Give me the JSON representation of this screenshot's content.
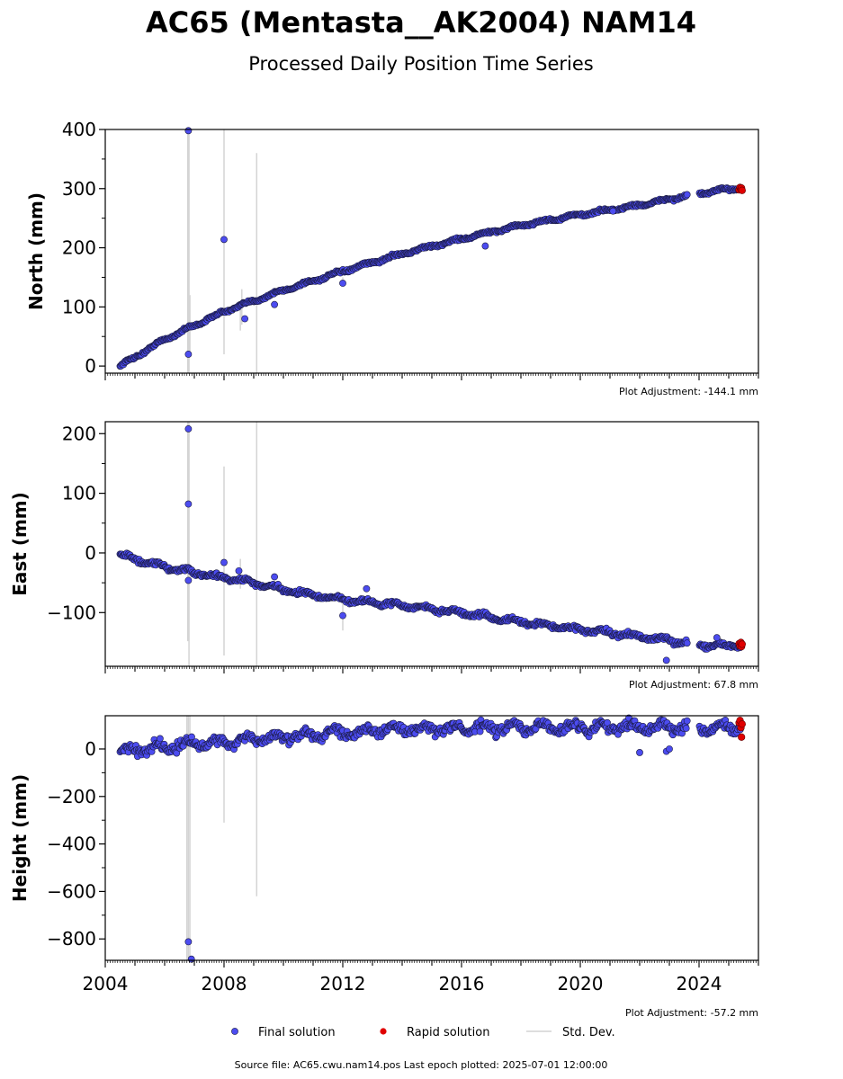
{
  "title": "AC65 (Mentasta__AK2004) NAM14",
  "subtitle": "Processed Daily Position Time Series",
  "source_text": "Source file: AC65.cwu.nam14.pos  Last epoch plotted: 2025-07-01 12:00:00",
  "legend": {
    "final": "Final solution",
    "rapid": "Rapid solution",
    "std": "Std. Dev."
  },
  "colors": {
    "final_fill": "#4c4cf0",
    "final_edge": "#1a1a40",
    "rapid": "#e00000",
    "std": "#d4d4d4"
  },
  "chart_data": [
    {
      "type": "scatter",
      "ylabel": "North (mm)",
      "adjustment": "Plot Adjustment: -144.1 mm",
      "xlim": [
        2004.0,
        2026.0
      ],
      "ylim": [
        -12,
        400
      ],
      "yticks": [
        {
          "value": 0,
          "label": "0"
        },
        {
          "value": 100,
          "label": "100"
        },
        {
          "value": 200,
          "label": "200"
        },
        {
          "value": 300,
          "label": "300"
        },
        {
          "value": 400,
          "label": "400"
        }
      ],
      "final_trend": [
        [
          2004.5,
          0
        ],
        [
          2006,
          45
        ],
        [
          2008,
          92
        ],
        [
          2010,
          128
        ],
        [
          2012,
          160
        ],
        [
          2014,
          190
        ],
        [
          2016,
          215
        ],
        [
          2018,
          238
        ],
        [
          2020,
          256
        ],
        [
          2022,
          272
        ],
        [
          2023.5,
          287
        ],
        [
          2024.3,
          294
        ],
        [
          2025.4,
          302
        ]
      ],
      "final_noise": 3,
      "final_gaps": [
        [
          2023.6,
          2024.0
        ]
      ],
      "final_outliers": [
        [
          2006.8,
          398
        ],
        [
          2006.8,
          20
        ],
        [
          2008.0,
          214
        ],
        [
          2008.7,
          80
        ],
        [
          2009.7,
          104
        ],
        [
          2012.0,
          140
        ],
        [
          2016.8,
          203
        ],
        [
          2021.1,
          262
        ]
      ],
      "rapid": [
        [
          2025.35,
          298
        ],
        [
          2025.38,
          302
        ],
        [
          2025.41,
          299
        ],
        [
          2025.43,
          301
        ],
        [
          2025.45,
          297
        ]
      ],
      "std_bars": [
        [
          2006.78,
          -12,
          400
        ],
        [
          2006.82,
          -12,
          400
        ],
        [
          2006.85,
          20,
          120
        ],
        [
          2008.0,
          20,
          400
        ],
        [
          2008.55,
          60,
          110
        ],
        [
          2008.6,
          70,
          130
        ],
        [
          2009.1,
          -12,
          360
        ],
        [
          2012.0,
          135,
          150
        ]
      ]
    },
    {
      "type": "scatter",
      "ylabel": "East (mm)",
      "adjustment": "Plot Adjustment: 67.8 mm",
      "xlim": [
        2004.0,
        2026.0
      ],
      "ylim": [
        -190,
        220
      ],
      "yticks": [
        {
          "value": -100,
          "label": "−100"
        },
        {
          "value": 0,
          "label": "0"
        },
        {
          "value": 100,
          "label": "100"
        },
        {
          "value": 200,
          "label": "200"
        }
      ],
      "final_trend": [
        [
          2004.5,
          -3
        ],
        [
          2005.5,
          -18
        ],
        [
          2006.5,
          -28
        ],
        [
          2007.5,
          -38
        ],
        [
          2008.5,
          -45
        ],
        [
          2010,
          -62
        ],
        [
          2012,
          -78
        ],
        [
          2014,
          -88
        ],
        [
          2016,
          -100
        ],
        [
          2018,
          -116
        ],
        [
          2020,
          -128
        ],
        [
          2022,
          -140
        ],
        [
          2023.5,
          -150
        ],
        [
          2024.4,
          -155
        ],
        [
          2025.4,
          -155
        ]
      ],
      "final_noise": 5,
      "final_gaps": [
        [
          2023.6,
          2024.0
        ]
      ],
      "final_outliers": [
        [
          2006.8,
          208
        ],
        [
          2006.8,
          82
        ],
        [
          2006.8,
          -46
        ],
        [
          2008.0,
          -16
        ],
        [
          2008.5,
          -30
        ],
        [
          2009.7,
          -40
        ],
        [
          2012.0,
          -105
        ],
        [
          2012.8,
          -60
        ],
        [
          2022.9,
          -180
        ],
        [
          2024.6,
          -142
        ]
      ],
      "rapid": [
        [
          2025.35,
          -152
        ],
        [
          2025.38,
          -156
        ],
        [
          2025.41,
          -150
        ],
        [
          2025.43,
          -157
        ],
        [
          2025.45,
          -153
        ]
      ],
      "std_bars": [
        [
          2006.78,
          -148,
          220
        ],
        [
          2006.82,
          -190,
          220
        ],
        [
          2008.0,
          -172,
          145
        ],
        [
          2008.55,
          -60,
          -10
        ],
        [
          2009.1,
          -190,
          220
        ],
        [
          2012.0,
          -130,
          -85
        ]
      ]
    },
    {
      "type": "scatter",
      "ylabel": "Height (mm)",
      "adjustment": "Plot Adjustment: -57.2 mm",
      "xlim": [
        2004.0,
        2026.0
      ],
      "ylim": [
        -890,
        140
      ],
      "yticks": [
        {
          "value": -800,
          "label": "−800"
        },
        {
          "value": -600,
          "label": "−600"
        },
        {
          "value": -400,
          "label": "−400"
        },
        {
          "value": -200,
          "label": "−200"
        },
        {
          "value": 0,
          "label": "0"
        }
      ],
      "xticks": [
        {
          "value": 2004,
          "label": "2004"
        },
        {
          "value": 2008,
          "label": "2008"
        },
        {
          "value": 2012,
          "label": "2012"
        },
        {
          "value": 2016,
          "label": "2016"
        },
        {
          "value": 2020,
          "label": "2020"
        },
        {
          "value": 2024,
          "label": "2024"
        }
      ],
      "final_trend": [
        [
          2004.5,
          -10
        ],
        [
          2006,
          10
        ],
        [
          2008,
          30
        ],
        [
          2010,
          50
        ],
        [
          2012,
          70
        ],
        [
          2014,
          85
        ],
        [
          2016,
          85
        ],
        [
          2018,
          90
        ],
        [
          2020,
          90
        ],
        [
          2022,
          95
        ],
        [
          2023.5,
          90
        ],
        [
          2024.4,
          85
        ],
        [
          2025.4,
          95
        ]
      ],
      "final_noise": 28,
      "final_gaps": [
        [
          2023.6,
          2024.0
        ]
      ],
      "final_outliers": [
        [
          2006.8,
          -812
        ],
        [
          2006.9,
          -885
        ],
        [
          2022.0,
          -15
        ],
        [
          2022.9,
          -10
        ],
        [
          2023.0,
          0
        ]
      ],
      "rapid": [
        [
          2025.35,
          110
        ],
        [
          2025.38,
          120
        ],
        [
          2025.41,
          90
        ],
        [
          2025.43,
          50
        ],
        [
          2025.45,
          105
        ]
      ],
      "std_bars": [
        [
          2006.75,
          -890,
          140
        ],
        [
          2006.8,
          -890,
          140
        ],
        [
          2006.85,
          -890,
          140
        ],
        [
          2008.0,
          -310,
          140
        ],
        [
          2009.1,
          -620,
          140
        ]
      ]
    }
  ]
}
